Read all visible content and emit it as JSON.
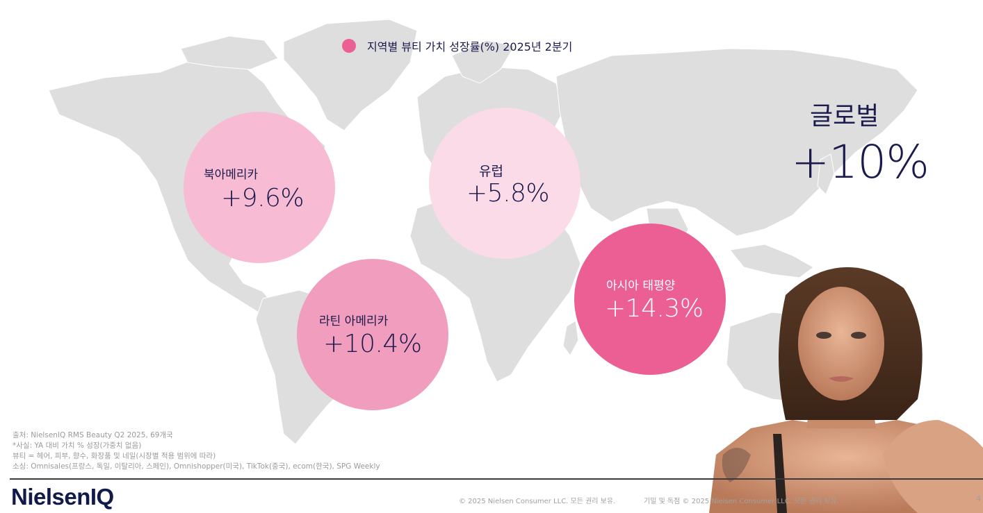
{
  "legend": {
    "label": "지역별 뷰티 가치 성장률(%) 2025년 2분기",
    "color": "#ec5f95"
  },
  "regions": [
    {
      "name": "북아메리카",
      "value": "+9.6%",
      "color": "#f7bcd3"
    },
    {
      "name": "유럽",
      "value": "+5.8%",
      "color": "#fadbe7"
    },
    {
      "name": "라틴 아메리카",
      "value": "+10.4%",
      "color": "#f19ebe"
    },
    {
      "name": "아시아 태평양",
      "value": "+14.3%",
      "color": "#ec5f95"
    }
  ],
  "global": {
    "label": "글로벌",
    "value": "+10%"
  },
  "notes": [
    "출처: NielsenIQ RMS Beauty Q2 2025, 69개국",
    "*사실: YA 대비 가치 % 성장(가중치 없음)",
    "뷰티 = 헤어, 피부, 향수, 화장품 및 네일(시장별 적용 범위에 따라)",
    "소싱: Omnisales(프랑스, 독일, 이탈리아, 스페인), Omnishopper(미국), TikTok(중국), ecom(한국), SPG Weekly"
  ],
  "footer": {
    "logo": "NielsenIQ",
    "copyright": "© 2025 Nielsen Consumer LLC. 모든 권리 보유.",
    "confidential": "기밀 및 독점 © 2025 Nielsen Consumer LLC. 모든 권리 보유.",
    "page_number": "4"
  },
  "colors": {
    "text_dark": "#1b1a4d",
    "map_gray": "#dedede",
    "note_gray": "#9a9a9a"
  }
}
